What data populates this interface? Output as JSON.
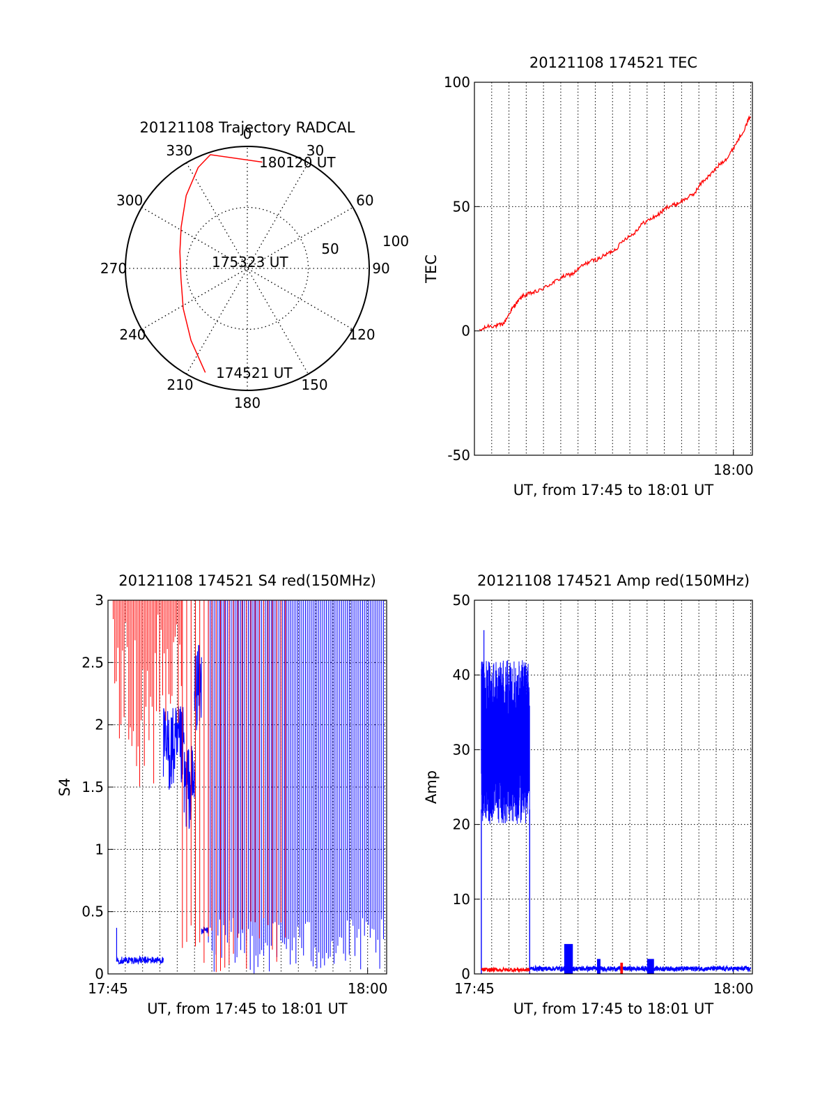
{
  "figure": {
    "background": "#ffffff"
  },
  "chart_data": [
    {
      "id": "trajectory",
      "type": "scatter",
      "polar": true,
      "title": "20121108 Trajectory RADCAL",
      "angle_labels": [
        "0",
        "30",
        "60",
        "90",
        "120",
        "150",
        "180",
        "210",
        "240",
        "270",
        "300",
        "330"
      ],
      "radial_labels": [
        "50",
        "100"
      ],
      "rlim": [
        0,
        100
      ],
      "grid": true,
      "series": [
        {
          "color": "#ff0000",
          "points": [
            {
              "az": 202,
              "r": 92
            },
            {
              "az": 218,
              "r": 75
            },
            {
              "az": 238,
              "r": 62
            },
            {
              "az": 262,
              "r": 55
            },
            {
              "az": 284,
              "r": 57
            },
            {
              "az": 302,
              "r": 64
            },
            {
              "az": 320,
              "r": 78
            },
            {
              "az": 334,
              "r": 92
            },
            {
              "az": 342,
              "r": 98
            },
            {
              "az": 8,
              "r": 88
            }
          ]
        }
      ],
      "annotations": [
        "180120 UT",
        "175323 UT",
        "174521 UT"
      ]
    },
    {
      "id": "tec",
      "type": "line",
      "title": "20121108 174521 TEC",
      "xlabel": "UT, from 17:45 to 18:01 UT",
      "ylabel": "TEC",
      "xlim": [
        0,
        16.1
      ],
      "ylim": [
        -50,
        100
      ],
      "yticks": [
        "-50",
        "0",
        "50",
        "100"
      ],
      "xticks": [
        {
          "x": 15,
          "label": "18:00"
        }
      ],
      "grid": true,
      "series": [
        {
          "color": "#ff0000",
          "x": [
            0.3,
            0.8,
            1.3,
            1.7,
            2.1,
            2.4,
            2.8,
            3.2,
            3.7,
            4.2,
            4.7,
            5.2,
            5.7,
            6.2,
            6.7,
            7.2,
            7.7,
            8.2,
            8.7,
            9.2,
            9.7,
            10.2,
            10.7,
            11.2,
            11.7,
            12.2,
            12.7,
            13.2,
            13.7,
            14.2,
            14.7,
            15.2,
            15.7,
            16.0
          ],
          "y": [
            0,
            2,
            2,
            3,
            8,
            11,
            14,
            15,
            16,
            18,
            20,
            22,
            23,
            26,
            28,
            29,
            31,
            33,
            37,
            39,
            43,
            45,
            47,
            50,
            51,
            53,
            55,
            60,
            63,
            67,
            70,
            76,
            82,
            87
          ]
        }
      ]
    },
    {
      "id": "s4",
      "type": "line",
      "title": "20121108 174521 S4 red(150MHz)",
      "xlabel": "UT, from 17:45 to 18:01 UT",
      "ylabel": "S4",
      "xlim": [
        0,
        16.1
      ],
      "ylim": [
        0,
        3
      ],
      "yticks": [
        "0",
        "0.5",
        "1",
        "1.5",
        "2",
        "2.5",
        "3"
      ],
      "xticks": [
        {
          "x": 0,
          "label": "17:45"
        },
        {
          "x": 15,
          "label": "18:00"
        }
      ],
      "grid": true,
      "series": [
        {
          "color": "#ff0000",
          "segments": [
            {
              "x0": 0.3,
              "x1": 2.8,
              "ymin": 1.5,
              "ymax": 3.0
            },
            {
              "x0": 2.8,
              "x1": 4.3,
              "ymin": 2.0,
              "ymax": 3.0
            },
            {
              "x0": 4.3,
              "x1": 6.0,
              "ymin": 0.0,
              "ymax": 3.0
            },
            {
              "x0": 6.0,
              "x1": 10.5,
              "ymin": 0.0,
              "ymax": 3.0
            }
          ]
        },
        {
          "color": "#0000ff",
          "levels": [
            {
              "x0": 0.5,
              "x1": 3.2,
              "y": 0.11
            },
            {
              "x0": 3.2,
              "x1": 4.4,
              "y": 1.8
            },
            {
              "x0": 4.4,
              "x1": 5.0,
              "y": 1.5
            },
            {
              "x0": 5.0,
              "x1": 5.4,
              "y": 2.3
            },
            {
              "x0": 5.4,
              "x1": 5.8,
              "y": 0.35
            }
          ],
          "segments": [
            {
              "x0": 5.8,
              "x1": 16.0,
              "ymin": 0.0,
              "ymax": 3.0
            }
          ]
        }
      ]
    },
    {
      "id": "amp",
      "type": "line",
      "title": "20121108 174521 Amp red(150MHz)",
      "xlabel": "UT, from 17:45 to 18:01 UT",
      "ylabel": "Amp",
      "xlim": [
        0,
        16.1
      ],
      "ylim": [
        0,
        50
      ],
      "yticks": [
        "0",
        "10",
        "20",
        "30",
        "40",
        "50"
      ],
      "xticks": [
        {
          "x": 0,
          "label": "17:45"
        },
        {
          "x": 15,
          "label": "18:00"
        }
      ],
      "grid": true,
      "series": [
        {
          "color": "#0000ff",
          "band": {
            "x0": 0.4,
            "x1": 3.2,
            "ymin": 20,
            "ymax": 42,
            "peak": 46
          },
          "baseline": {
            "x0": 3.2,
            "x1": 16.0,
            "y": 0.4
          },
          "bumps": [
            {
              "x0": 5.2,
              "x1": 5.7,
              "y": 4
            },
            {
              "x0": 7.1,
              "x1": 7.3,
              "y": 2
            },
            {
              "x0": 10.0,
              "x1": 10.4,
              "y": 2
            }
          ]
        },
        {
          "color": "#ff0000",
          "baseline": {
            "x0": 0.4,
            "x1": 3.2,
            "y": 0.3
          },
          "bumps": [
            {
              "x0": 8.45,
              "x1": 8.6,
              "y": 1.5
            }
          ]
        }
      ]
    }
  ]
}
